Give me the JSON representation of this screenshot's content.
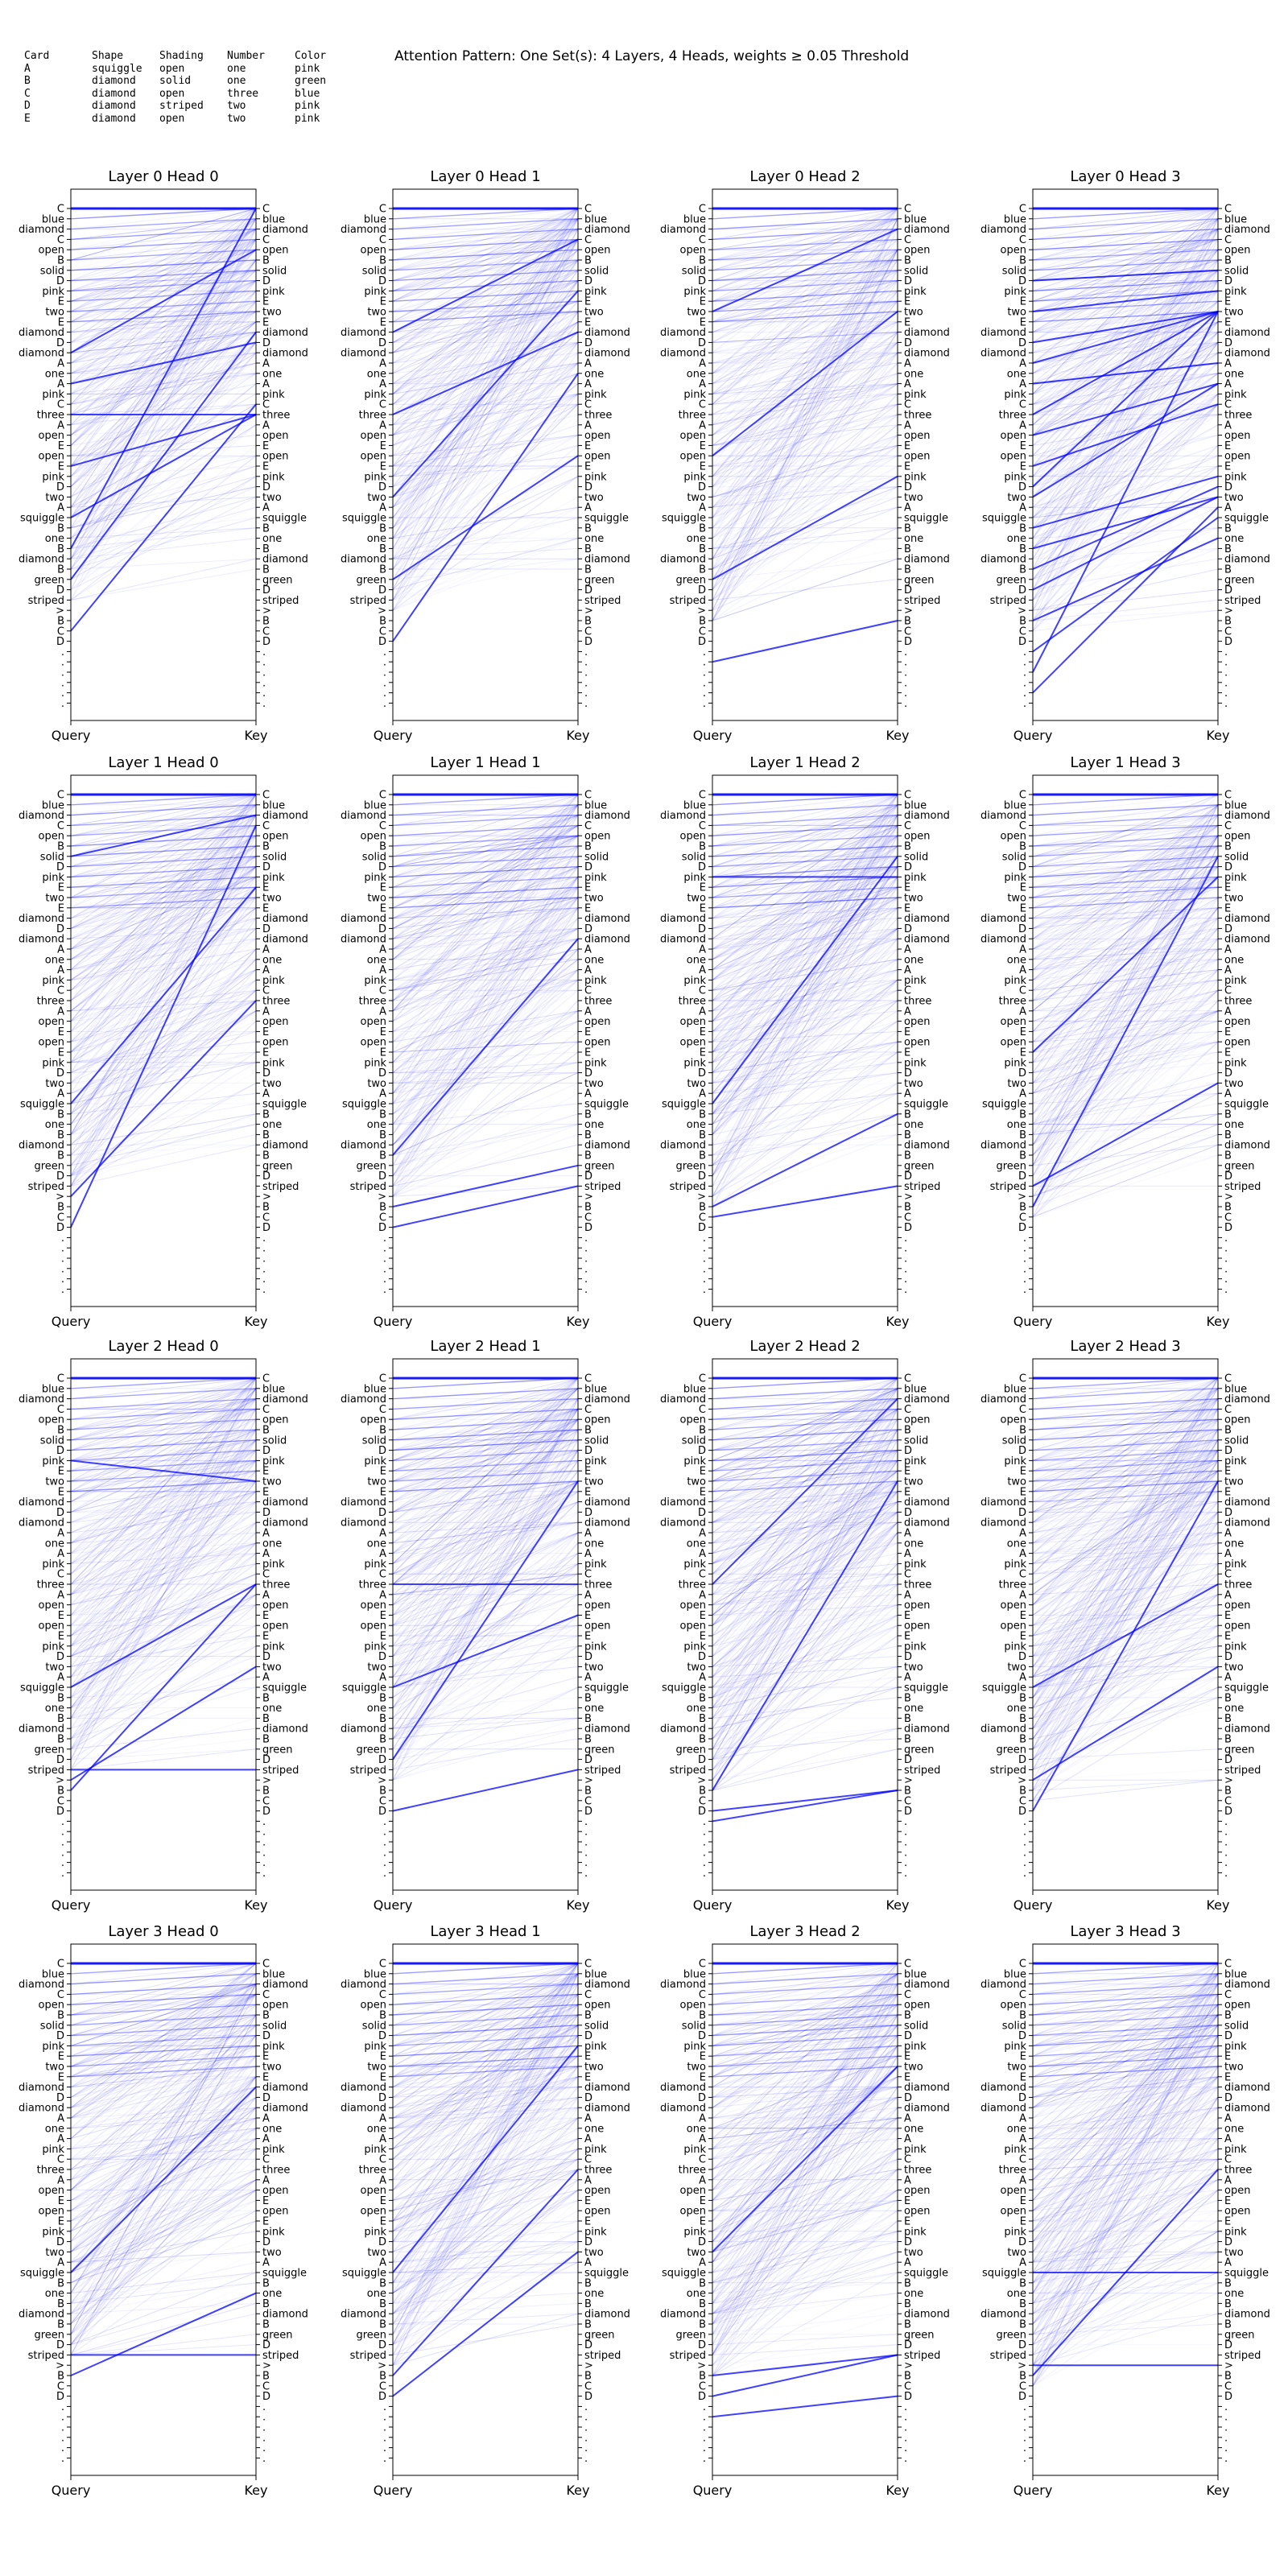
{
  "figure_title": "Attention Pattern: One Set(s): 4 Layers, 4 Heads, weights ≥ 0.05 Threshold",
  "card_table": {
    "columns": [
      "Card",
      "Shape",
      "Shading",
      "Number",
      "Color"
    ],
    "rows": [
      [
        "A",
        "squiggle",
        "open",
        "one",
        "pink"
      ],
      [
        "B",
        "diamond",
        "solid",
        "one",
        "green"
      ],
      [
        "C",
        "diamond",
        "open",
        "three",
        "blue"
      ],
      [
        "D",
        "diamond",
        "striped",
        "two",
        "pink"
      ],
      [
        "E",
        "diamond",
        "open",
        "two",
        "pink"
      ]
    ]
  },
  "chart_data": {
    "type": "attention-line-plot",
    "layers": 4,
    "heads": 4,
    "threshold": 0.05,
    "line_color": "#0000ff",
    "query_axis_label": "Query",
    "key_axis_label": "Key",
    "tokens": [
      "C",
      "blue",
      "diamond",
      "C",
      "open",
      "B",
      "solid",
      "D",
      "pink",
      "E",
      "two",
      "E",
      "diamond",
      "D",
      "diamond",
      "A",
      "one",
      "A",
      "pink",
      "C",
      "three",
      "A",
      "open",
      "E",
      "open",
      "E",
      "pink",
      "D",
      "two",
      "A",
      "squiggle",
      "B",
      "one",
      "B",
      "diamond",
      "B",
      "green",
      "D",
      "striped",
      ">",
      "B",
      "C",
      "D",
      ".",
      ".",
      ".",
      ".",
      ".",
      "."
    ],
    "panels": [
      {
        "title": "Layer 0 Head 0",
        "strong_edges": [
          [
            14,
            4
          ],
          [
            17,
            13
          ],
          [
            20,
            20
          ],
          [
            25,
            20
          ],
          [
            30,
            20
          ],
          [
            36,
            12
          ],
          [
            41,
            19
          ],
          [
            33,
            0
          ]
        ]
      },
      {
        "title": "Layer 0 Head 1",
        "strong_edges": [
          [
            12,
            3
          ],
          [
            20,
            12
          ],
          [
            28,
            8
          ],
          [
            36,
            24
          ],
          [
            42,
            16
          ]
        ]
      },
      {
        "title": "Layer 0 Head 2",
        "strong_edges": [
          [
            10,
            2
          ],
          [
            24,
            10
          ],
          [
            36,
            26
          ],
          [
            44,
            40
          ]
        ]
      },
      {
        "title": "Layer 0 Head 3",
        "strong_edges": [
          [
            7,
            6
          ],
          [
            10,
            8
          ],
          [
            13,
            10
          ],
          [
            17,
            15
          ],
          [
            22,
            17
          ],
          [
            25,
            19
          ],
          [
            28,
            17
          ],
          [
            31,
            26
          ],
          [
            35,
            27
          ],
          [
            37,
            28
          ],
          [
            40,
            32
          ],
          [
            43,
            30
          ],
          [
            45,
            10
          ],
          [
            33,
            28
          ],
          [
            20,
            10
          ],
          [
            15,
            10
          ],
          [
            27,
            10
          ],
          [
            47,
            29
          ]
        ]
      },
      {
        "title": "Layer 1 Head 0",
        "strong_edges": [
          [
            6,
            2
          ],
          [
            30,
            9
          ],
          [
            39,
            20
          ],
          [
            42,
            3
          ]
        ]
      },
      {
        "title": "Layer 1 Head 1",
        "strong_edges": [
          [
            40,
            36
          ],
          [
            42,
            38
          ],
          [
            35,
            14
          ]
        ]
      },
      {
        "title": "Layer 1 Head 2",
        "strong_edges": [
          [
            8,
            8
          ],
          [
            40,
            31
          ],
          [
            41,
            38
          ],
          [
            30,
            6
          ]
        ]
      },
      {
        "title": "Layer 1 Head 3",
        "strong_edges": [
          [
            40,
            6
          ],
          [
            38,
            28
          ],
          [
            25,
            8
          ]
        ]
      },
      {
        "title": "Layer 2 Head 0",
        "strong_edges": [
          [
            8,
            10
          ],
          [
            39,
            28
          ],
          [
            38,
            38
          ],
          [
            40,
            20
          ],
          [
            30,
            20
          ]
        ]
      },
      {
        "title": "Layer 2 Head 1",
        "strong_edges": [
          [
            20,
            20
          ],
          [
            30,
            23
          ],
          [
            42,
            38
          ],
          [
            37,
            10
          ]
        ]
      },
      {
        "title": "Layer 2 Head 2",
        "strong_edges": [
          [
            40,
            10
          ],
          [
            42,
            40
          ],
          [
            43,
            40
          ],
          [
            20,
            2
          ]
        ]
      },
      {
        "title": "Layer 2 Head 3",
        "strong_edges": [
          [
            30,
            20
          ],
          [
            39,
            28
          ],
          [
            42,
            10
          ]
        ]
      },
      {
        "title": "Layer 3 Head 0",
        "strong_edges": [
          [
            38,
            38
          ],
          [
            40,
            32
          ],
          [
            30,
            12
          ]
        ]
      },
      {
        "title": "Layer 3 Head 1",
        "strong_edges": [
          [
            40,
            20
          ],
          [
            42,
            28
          ],
          [
            30,
            8
          ]
        ]
      },
      {
        "title": "Layer 3 Head 2",
        "strong_edges": [
          [
            40,
            38
          ],
          [
            42,
            38
          ],
          [
            28,
            10
          ],
          [
            44,
            42
          ]
        ]
      },
      {
        "title": "Layer 3 Head 3",
        "strong_edges": [
          [
            39,
            39
          ],
          [
            30,
            30
          ],
          [
            40,
            20
          ]
        ]
      }
    ]
  }
}
